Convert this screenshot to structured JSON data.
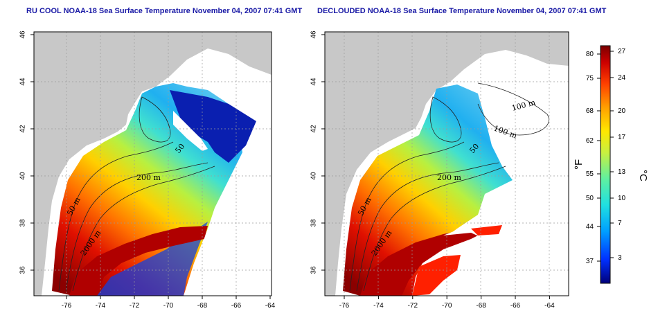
{
  "panels": [
    {
      "title": "RU COOL NOAA-18 Sea Surface Temperature November 04, 2007 07:41 GMT",
      "contours": [
        "50 m",
        "200 m",
        "2000 m",
        "50"
      ]
    },
    {
      "title": "DECLOUDED NOAA-18 Sea Surface Temperature November 04, 2007 07:41 GMT",
      "contours": [
        "50 m",
        "200 m",
        "2000 m",
        "100 m",
        "100 m",
        "50"
      ]
    }
  ],
  "axes": {
    "lon_ticks": [
      "-76",
      "-74",
      "-72",
      "-70",
      "-68",
      "-66",
      "-64"
    ],
    "lat_ticks": [
      "36",
      "38",
      "40",
      "42",
      "44",
      "46"
    ]
  },
  "colorbar": {
    "fahrenheit_ticks": [
      "80",
      "75",
      "68",
      "62",
      "55",
      "50",
      "44",
      "37"
    ],
    "celsius_ticks": [
      "27",
      "24",
      "20",
      "17",
      "13",
      "10",
      "7",
      "3"
    ],
    "fahrenheit_label": "°F",
    "celsius_label": "°C",
    "colors": [
      "#00007a",
      "#0030ff",
      "#00a0ff",
      "#20e0e0",
      "#60f0a0",
      "#c8f040",
      "#ffe800",
      "#ffa000",
      "#ff4000",
      "#cc0000",
      "#7a0000"
    ]
  },
  "colors": {
    "land": "#c8c8c8",
    "title": "#1a1aa6",
    "cloud": "#ffffff"
  }
}
